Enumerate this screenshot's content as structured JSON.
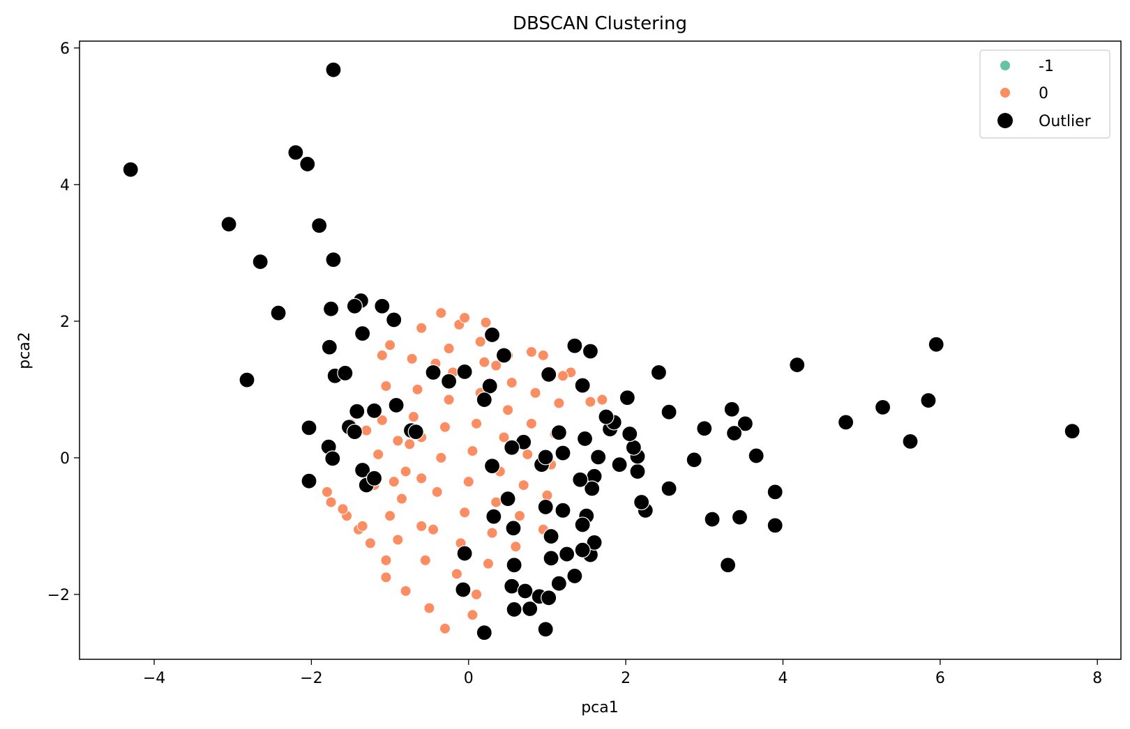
{
  "chart_data": {
    "type": "scatter",
    "title": "DBSCAN Clustering",
    "xlabel": "pca1",
    "ylabel": "pca2",
    "xlim": [
      -4.95,
      8.3
    ],
    "ylim": [
      -2.95,
      6.1
    ],
    "xticks": [
      -4,
      -2,
      0,
      2,
      4,
      6,
      8
    ],
    "yticks": [
      -2,
      0,
      2,
      4,
      6
    ],
    "xtick_labels": [
      "−4",
      "−2",
      "0",
      "2",
      "4",
      "6",
      "8"
    ],
    "ytick_labels": [
      "−2",
      "0",
      "2",
      "4",
      "6"
    ],
    "grid": false,
    "legend_position": "top-right",
    "colors": {
      "noise": "#66c2a5",
      "cluster0": "#fc8d62",
      "outlier": "#000000"
    },
    "series": [
      {
        "name": "-1",
        "color": "#66c2a5",
        "points": []
      },
      {
        "name": "0",
        "color": "#fc8d62",
        "points": [
          [
            -0.35,
            2.12
          ],
          [
            -0.12,
            1.95
          ],
          [
            0.22,
            1.98
          ],
          [
            -0.05,
            2.05
          ],
          [
            -0.6,
            1.9
          ],
          [
            -0.25,
            1.6
          ],
          [
            0.5,
            1.5
          ],
          [
            0.8,
            1.55
          ],
          [
            -1.1,
            1.5
          ],
          [
            -1.0,
            1.65
          ],
          [
            0.15,
            1.7
          ],
          [
            0.95,
            1.5
          ],
          [
            -0.72,
            1.45
          ],
          [
            -0.42,
            1.38
          ],
          [
            0.35,
            1.35
          ],
          [
            1.3,
            1.25
          ],
          [
            -1.5,
            0.5
          ],
          [
            -1.3,
            0.4
          ],
          [
            1.55,
            0.82
          ],
          [
            1.7,
            0.85
          ],
          [
            -1.8,
            -0.5
          ],
          [
            -1.75,
            -0.65
          ],
          [
            -1.55,
            -0.85
          ],
          [
            -1.4,
            -1.05
          ],
          [
            -1.05,
            -1.75
          ],
          [
            -0.8,
            -1.95
          ],
          [
            -0.5,
            -2.2
          ],
          [
            -0.3,
            -2.5
          ],
          [
            0.05,
            -2.3
          ],
          [
            0.1,
            -2.0
          ],
          [
            -1.6,
            -0.75
          ],
          [
            -1.35,
            -1.0
          ],
          [
            -1.25,
            -1.25
          ],
          [
            -1.05,
            -1.5
          ],
          [
            -0.9,
            -1.2
          ],
          [
            -0.85,
            -0.6
          ],
          [
            -0.8,
            -0.2
          ],
          [
            -0.75,
            0.2
          ],
          [
            -0.7,
            0.6
          ],
          [
            -0.65,
            1.0
          ],
          [
            -0.55,
            -1.5
          ],
          [
            -0.45,
            -1.05
          ],
          [
            -0.4,
            -0.5
          ],
          [
            -0.35,
            0.0
          ],
          [
            -0.3,
            0.45
          ],
          [
            -0.25,
            0.85
          ],
          [
            -0.2,
            1.25
          ],
          [
            -0.15,
            -1.7
          ],
          [
            -0.1,
            -1.25
          ],
          [
            -0.05,
            -0.8
          ],
          [
            0.0,
            -0.35
          ],
          [
            0.05,
            0.1
          ],
          [
            0.1,
            0.5
          ],
          [
            0.15,
            0.95
          ],
          [
            0.2,
            1.4
          ],
          [
            0.25,
            -1.55
          ],
          [
            0.3,
            -1.1
          ],
          [
            0.35,
            -0.65
          ],
          [
            0.4,
            -0.2
          ],
          [
            0.45,
            0.3
          ],
          [
            0.5,
            0.7
          ],
          [
            0.55,
            1.1
          ],
          [
            0.6,
            -1.3
          ],
          [
            0.65,
            -0.85
          ],
          [
            0.7,
            -0.4
          ],
          [
            0.75,
            0.05
          ],
          [
            0.8,
            0.5
          ],
          [
            0.85,
            0.95
          ],
          [
            0.95,
            -1.05
          ],
          [
            1.0,
            -0.55
          ],
          [
            1.05,
            -0.1
          ],
          [
            1.1,
            0.35
          ],
          [
            1.15,
            0.8
          ],
          [
            1.2,
            1.2
          ],
          [
            -1.2,
            -0.4
          ],
          [
            -1.15,
            0.05
          ],
          [
            -1.1,
            0.55
          ],
          [
            -1.05,
            1.05
          ],
          [
            -1.0,
            -0.85
          ],
          [
            -0.95,
            -0.35
          ],
          [
            -0.9,
            0.25
          ],
          [
            -0.6,
            -1.0
          ],
          [
            -0.6,
            -0.3
          ],
          [
            -0.6,
            0.3
          ]
        ]
      },
      {
        "name": "Outlier",
        "color": "#000000",
        "points": [
          [
            -1.72,
            5.68
          ],
          [
            -2.2,
            4.47
          ],
          [
            -2.05,
            4.3
          ],
          [
            -4.3,
            4.22
          ],
          [
            -3.05,
            3.42
          ],
          [
            -1.9,
            3.4
          ],
          [
            -2.65,
            2.87
          ],
          [
            -1.72,
            2.9
          ],
          [
            -1.75,
            2.18
          ],
          [
            -2.42,
            2.12
          ],
          [
            -1.37,
            2.3
          ],
          [
            -1.45,
            2.22
          ],
          [
            -1.1,
            2.22
          ],
          [
            -0.95,
            2.02
          ],
          [
            -1.35,
            1.82
          ],
          [
            0.3,
            1.8
          ],
          [
            -1.77,
            1.62
          ],
          [
            -2.82,
            1.14
          ],
          [
            -1.7,
            1.2
          ],
          [
            -1.57,
            1.24
          ],
          [
            -0.45,
            1.25
          ],
          [
            -0.05,
            1.26
          ],
          [
            -0.25,
            1.12
          ],
          [
            0.45,
            1.5
          ],
          [
            0.27,
            1.05
          ],
          [
            0.2,
            0.85
          ],
          [
            1.02,
            1.22
          ],
          [
            1.35,
            1.64
          ],
          [
            1.55,
            1.56
          ],
          [
            1.45,
            1.06
          ],
          [
            2.42,
            1.25
          ],
          [
            2.02,
            0.88
          ],
          [
            4.18,
            1.36
          ],
          [
            5.95,
            1.66
          ],
          [
            5.27,
            0.74
          ],
          [
            5.85,
            0.84
          ],
          [
            4.8,
            0.52
          ],
          [
            5.62,
            0.24
          ],
          [
            7.68,
            0.39
          ],
          [
            2.55,
            0.67
          ],
          [
            3.35,
            0.71
          ],
          [
            3.52,
            0.5
          ],
          [
            3.0,
            0.43
          ],
          [
            3.38,
            0.36
          ],
          [
            3.66,
            0.03
          ],
          [
            2.87,
            -0.03
          ],
          [
            3.9,
            -0.5
          ],
          [
            3.45,
            -0.87
          ],
          [
            3.1,
            -0.9
          ],
          [
            3.9,
            -0.99
          ],
          [
            3.3,
            -1.57
          ],
          [
            2.55,
            -0.45
          ],
          [
            2.25,
            -0.77
          ],
          [
            2.2,
            -0.65
          ],
          [
            2.15,
            -0.2
          ],
          [
            2.15,
            0.02
          ],
          [
            2.1,
            0.15
          ],
          [
            2.05,
            0.35
          ],
          [
            1.92,
            -0.1
          ],
          [
            1.8,
            0.42
          ],
          [
            1.85,
            0.52
          ],
          [
            1.75,
            0.6
          ],
          [
            1.65,
            0.01
          ],
          [
            1.6,
            -0.27
          ],
          [
            1.57,
            -0.45
          ],
          [
            1.48,
            0.28
          ],
          [
            1.42,
            -0.32
          ],
          [
            1.5,
            -0.85
          ],
          [
            1.45,
            -0.98
          ],
          [
            1.55,
            -1.42
          ],
          [
            1.6,
            -1.24
          ],
          [
            1.45,
            -1.35
          ],
          [
            1.35,
            -1.73
          ],
          [
            1.15,
            -1.84
          ],
          [
            1.25,
            -1.41
          ],
          [
            1.05,
            -1.47
          ],
          [
            1.05,
            -1.15
          ],
          [
            1.2,
            0.07
          ],
          [
            1.15,
            0.37
          ],
          [
            1.2,
            -0.77
          ],
          [
            0.98,
            -0.72
          ],
          [
            0.93,
            -0.1
          ],
          [
            0.98,
            0.01
          ],
          [
            0.7,
            0.23
          ],
          [
            0.55,
            0.15
          ],
          [
            0.3,
            -0.12
          ],
          [
            0.5,
            -0.6
          ],
          [
            0.32,
            -0.86
          ],
          [
            0.57,
            -1.03
          ],
          [
            0.58,
            -1.57
          ],
          [
            -0.05,
            -1.4
          ],
          [
            0.55,
            -1.88
          ],
          [
            0.72,
            -1.95
          ],
          [
            0.9,
            -2.03
          ],
          [
            0.78,
            -2.21
          ],
          [
            0.58,
            -2.22
          ],
          [
            1.02,
            -2.05
          ],
          [
            0.98,
            -2.51
          ],
          [
            0.2,
            -2.56
          ],
          [
            -0.07,
            -1.93
          ],
          [
            -0.73,
            0.4
          ],
          [
            -0.67,
            0.38
          ],
          [
            -0.92,
            0.77
          ],
          [
            -1.42,
            0.68
          ],
          [
            -1.2,
            0.69
          ],
          [
            -1.52,
            0.45
          ],
          [
            -1.45,
            0.38
          ],
          [
            -1.78,
            0.16
          ],
          [
            -1.73,
            -0.01
          ],
          [
            -2.03,
            0.44
          ],
          [
            -2.03,
            -0.34
          ],
          [
            -1.35,
            -0.18
          ],
          [
            -1.3,
            -0.4
          ],
          [
            -1.2,
            -0.3
          ]
        ]
      }
    ]
  }
}
